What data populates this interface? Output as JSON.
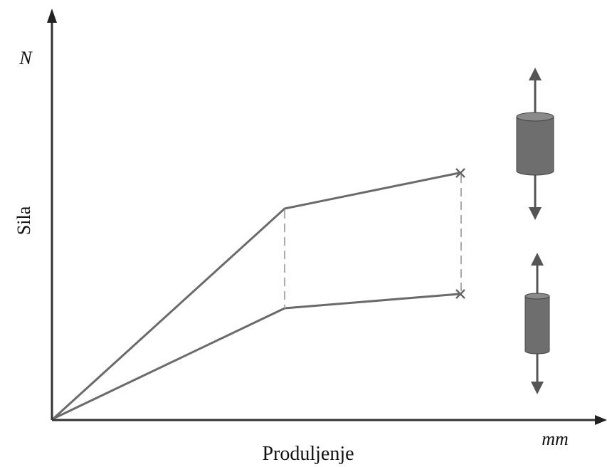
{
  "axes": {
    "y_unit": "N",
    "y_label": "Sila",
    "x_unit": "mm",
    "x_label": "Produljenje"
  }
}
